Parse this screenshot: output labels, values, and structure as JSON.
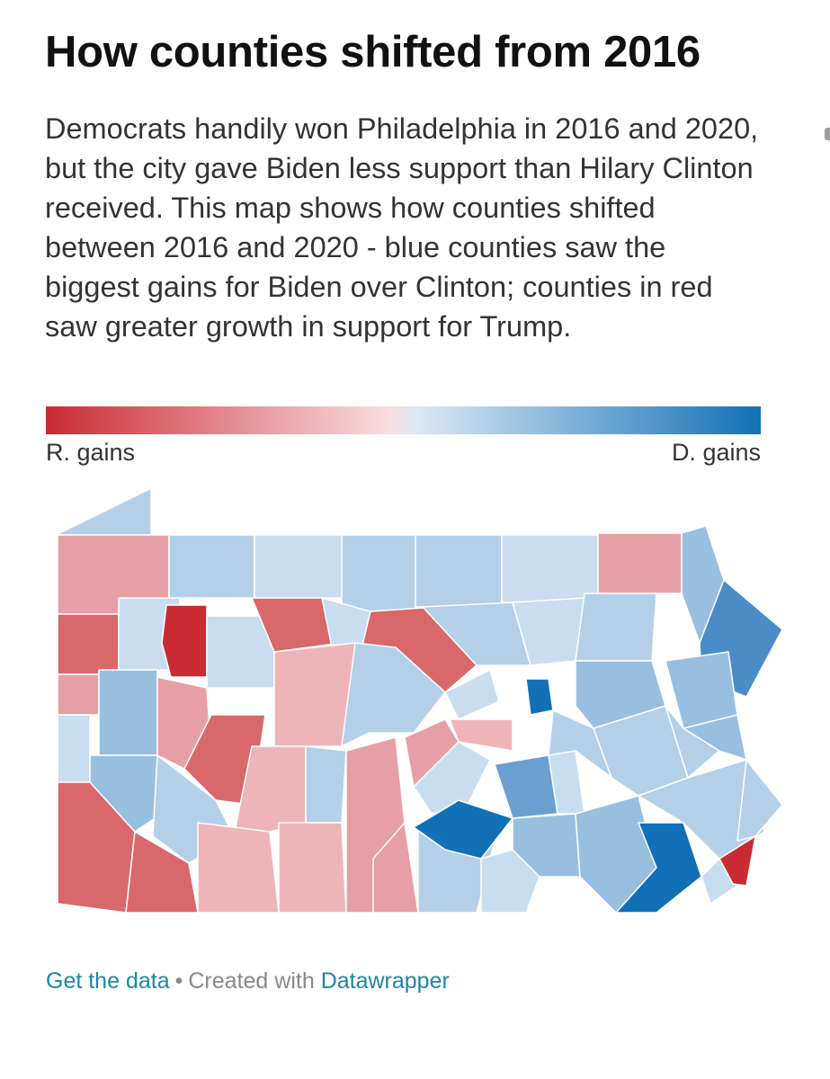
{
  "title": "How counties shifted from 2016",
  "description": "Democrats handily won Philadelphia in 2016 and 2020, but the city gave Biden less support than Hilary Clinton received. This map shows how counties shifted between 2016 and 2020 - blue counties saw the biggest gains for Biden over Clinton; counties in red saw greater growth in support for Trump.",
  "legend": {
    "left_label": "R. gains",
    "right_label": "D. gains",
    "colors": [
      "#cb2b33",
      "#f9dde0",
      "#d9e8f4",
      "#1270b7"
    ]
  },
  "footer": {
    "get_data": "Get the data",
    "separator": "•",
    "created_with": "Created with",
    "tool": "Datawrapper"
  },
  "colors": {
    "strong_red": "#cb2b33",
    "red": "#d9686a",
    "light_red": "#e6a0a5",
    "pink": "#eeb5b9",
    "pale_blue": "#c8def0",
    "light_blue": "#b3d0e8",
    "blue": "#98bfdf",
    "mid_blue": "#6b9fd0",
    "strong_blue": "#1270b7"
  }
}
